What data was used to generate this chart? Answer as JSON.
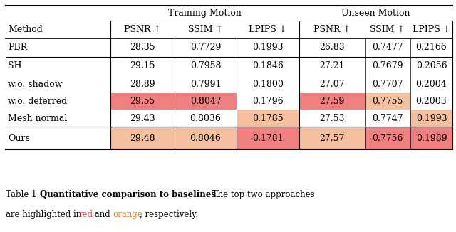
{
  "col_headers_row1_train": "Training Motion",
  "col_headers_row1_unseen": "Unseen Motion",
  "col_headers_row2": [
    "Method",
    "PSNR ↑",
    "SSIM ↑",
    "LPIPS ↓",
    "PSNR ↑",
    "SSIM ↑",
    "LPIPS ↓"
  ],
  "rows": [
    [
      "PBR",
      "28.35",
      "0.7729",
      "0.1993",
      "26.83",
      "0.7477",
      "0.2166"
    ],
    [
      "SH",
      "29.15",
      "0.7958",
      "0.1846",
      "27.21",
      "0.7679",
      "0.2056"
    ],
    [
      "w.o. shadow",
      "28.89",
      "0.7991",
      "0.1800",
      "27.07",
      "0.7707",
      "0.2004"
    ],
    [
      "w.o. deferred",
      "29.55",
      "0.8047",
      "0.1796",
      "27.59",
      "0.7755",
      "0.2003"
    ],
    [
      "Mesh normal",
      "29.43",
      "0.8036",
      "0.1785",
      "27.53",
      "0.7747",
      "0.1993"
    ],
    [
      "Ours",
      "29.48",
      "0.8046",
      "0.1781",
      "27.57",
      "0.7756",
      "0.1989"
    ]
  ],
  "cell_colors": {
    "3,1": "#f08080",
    "3,2": "#f08080",
    "3,4": "#f08080",
    "3,5": "#f5c0a0",
    "4,3": "#f5c0a0",
    "4,6": "#f5c0a0",
    "5,1": "#f5c0a0",
    "5,2": "#f5c0a0",
    "5,3": "#f08080",
    "5,4": "#f5c0a0",
    "5,5": "#f08080",
    "5,6": "#f08080"
  },
  "red_color": "#d05050",
  "orange_color": "#cc8833",
  "bg_color": "#ffffff",
  "font_size": 9.0,
  "caption_font_size": 8.5
}
